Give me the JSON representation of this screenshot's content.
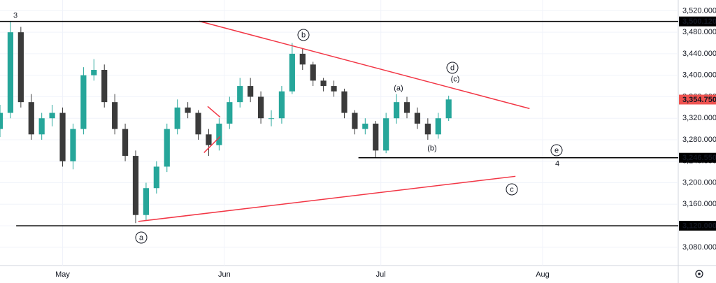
{
  "chart_data": {
    "type": "candlestick",
    "x": [
      110,
      112,
      114,
      116,
      118,
      120,
      122,
      124,
      126,
      128,
      130,
      132,
      134,
      136,
      138,
      140,
      142,
      144,
      146,
      148,
      150,
      152,
      154,
      156,
      158,
      160,
      162,
      164,
      166,
      168,
      170,
      172,
      174,
      176,
      178,
      180,
      182,
      184,
      186,
      188,
      190,
      192,
      194,
      196
    ],
    "open": [
      3300,
      3330,
      3480,
      3350,
      3290,
      3320,
      3330,
      3240,
      3300,
      3400,
      3410,
      3350,
      3300,
      3250,
      3140,
      3190,
      3230,
      3300,
      3340,
      3330,
      3290,
      3270,
      3310,
      3350,
      3380,
      3360,
      3320,
      3320,
      3370,
      3440,
      3420,
      3390,
      3380,
      3370,
      3330,
      3300,
      3310,
      3260,
      3320,
      3350,
      3330,
      3310,
      3290,
      3320
    ],
    "high": [
      3345,
      3500,
      3490,
      3365,
      3330,
      3345,
      3340,
      3310,
      3415,
      3430,
      3420,
      3365,
      3310,
      3260,
      3200,
      3240,
      3310,
      3355,
      3350,
      3335,
      3300,
      3320,
      3360,
      3395,
      3395,
      3370,
      3335,
      3380,
      3460,
      3450,
      3425,
      3395,
      3390,
      3375,
      3335,
      3320,
      3315,
      3330,
      3365,
      3360,
      3340,
      3320,
      3330,
      3362
    ],
    "low": [
      3285,
      3320,
      3340,
      3280,
      3280,
      3305,
      3230,
      3225,
      3290,
      3390,
      3340,
      3290,
      3240,
      3125,
      3130,
      3180,
      3220,
      3290,
      3320,
      3280,
      3250,
      3260,
      3300,
      3340,
      3350,
      3310,
      3305,
      3310,
      3365,
      3410,
      3380,
      3370,
      3360,
      3320,
      3290,
      3290,
      3246,
      3255,
      3310,
      3320,
      3300,
      3280,
      3282,
      3315
    ],
    "close": [
      3330,
      3480,
      3350,
      3290,
      3320,
      3330,
      3240,
      3300,
      3400,
      3410,
      3350,
      3300,
      3250,
      3140,
      3190,
      3230,
      3300,
      3340,
      3330,
      3290,
      3270,
      3310,
      3350,
      3380,
      3360,
      3320,
      3320,
      3370,
      3440,
      3420,
      3390,
      3380,
      3370,
      3330,
      3300,
      3310,
      3260,
      3320,
      3350,
      3330,
      3310,
      3290,
      3320,
      3355
    ],
    "up_color": "#26a69a",
    "down_color": "#3b3b3b",
    "xlim": [
      110,
      240
    ],
    "ylim": [
      3046,
      3540
    ],
    "xticks": [
      {
        "value": 122,
        "label": "May"
      },
      {
        "value": 153,
        "label": "Jun"
      },
      {
        "value": 183,
        "label": "Jul"
      },
      {
        "value": 214,
        "label": "Aug"
      }
    ],
    "yticks": [
      {
        "value": 3080,
        "label": "3,080.000"
      },
      {
        "value": 3120,
        "label": "3,120.000"
      },
      {
        "value": 3160,
        "label": "3,160.000"
      },
      {
        "value": 3200,
        "label": "3,200.000"
      },
      {
        "value": 3240,
        "label": "3,240.000"
      },
      {
        "value": 3280,
        "label": "3,280.000"
      },
      {
        "value": 3320,
        "label": "3,320.000"
      },
      {
        "value": 3360,
        "label": "3,360.000"
      },
      {
        "value": 3400,
        "label": "3,400.000"
      },
      {
        "value": 3440,
        "label": "3,440.000"
      },
      {
        "value": 3480,
        "label": "3,480.000"
      },
      {
        "value": 3520,
        "label": "3,520.000"
      }
    ],
    "grid": true,
    "levels": [
      {
        "value": 3500.12,
        "label": "3,500.120",
        "start": 110,
        "color": "#000000"
      },
      {
        "value": 3246.55,
        "label": "3,246.550",
        "start": 178.7,
        "color": "#000000"
      },
      {
        "value": 3120,
        "label": "3,120.000",
        "start": 113.1,
        "color": "#000000"
      }
    ],
    "last_price": {
      "value": 3354.75,
      "label": "3,354.750",
      "color": "#ef5350"
    },
    "trendlines": [
      {
        "points": [
          [
            148.2,
            3500.5
          ],
          [
            211.5,
            3338
          ]
        ],
        "color": "#f23645"
      },
      {
        "points": [
          [
            136.5,
            3128
          ],
          [
            208.8,
            3212
          ]
        ],
        "color": "#f23645"
      },
      {
        "points": [
          [
            149.8,
            3342
          ],
          [
            152.2,
            3322
          ]
        ],
        "color": "#f23645"
      },
      {
        "points": [
          [
            149.1,
            3256
          ],
          [
            152.2,
            3286
          ]
        ],
        "color": "#f23645"
      }
    ],
    "wave_labels": [
      {
        "text": "3",
        "circled": false
      },
      {
        "text": "b",
        "circled": true
      },
      {
        "text": "d",
        "circled": true
      },
      {
        "text": "(c)",
        "circled": false
      },
      {
        "text": "(a)",
        "circled": false
      },
      {
        "text": "(b)",
        "circled": false
      },
      {
        "text": "e",
        "circled": true
      },
      {
        "text": "4",
        "circled": false
      },
      {
        "text": "c",
        "circled": true
      },
      {
        "text": "a",
        "circled": true
      }
    ]
  }
}
